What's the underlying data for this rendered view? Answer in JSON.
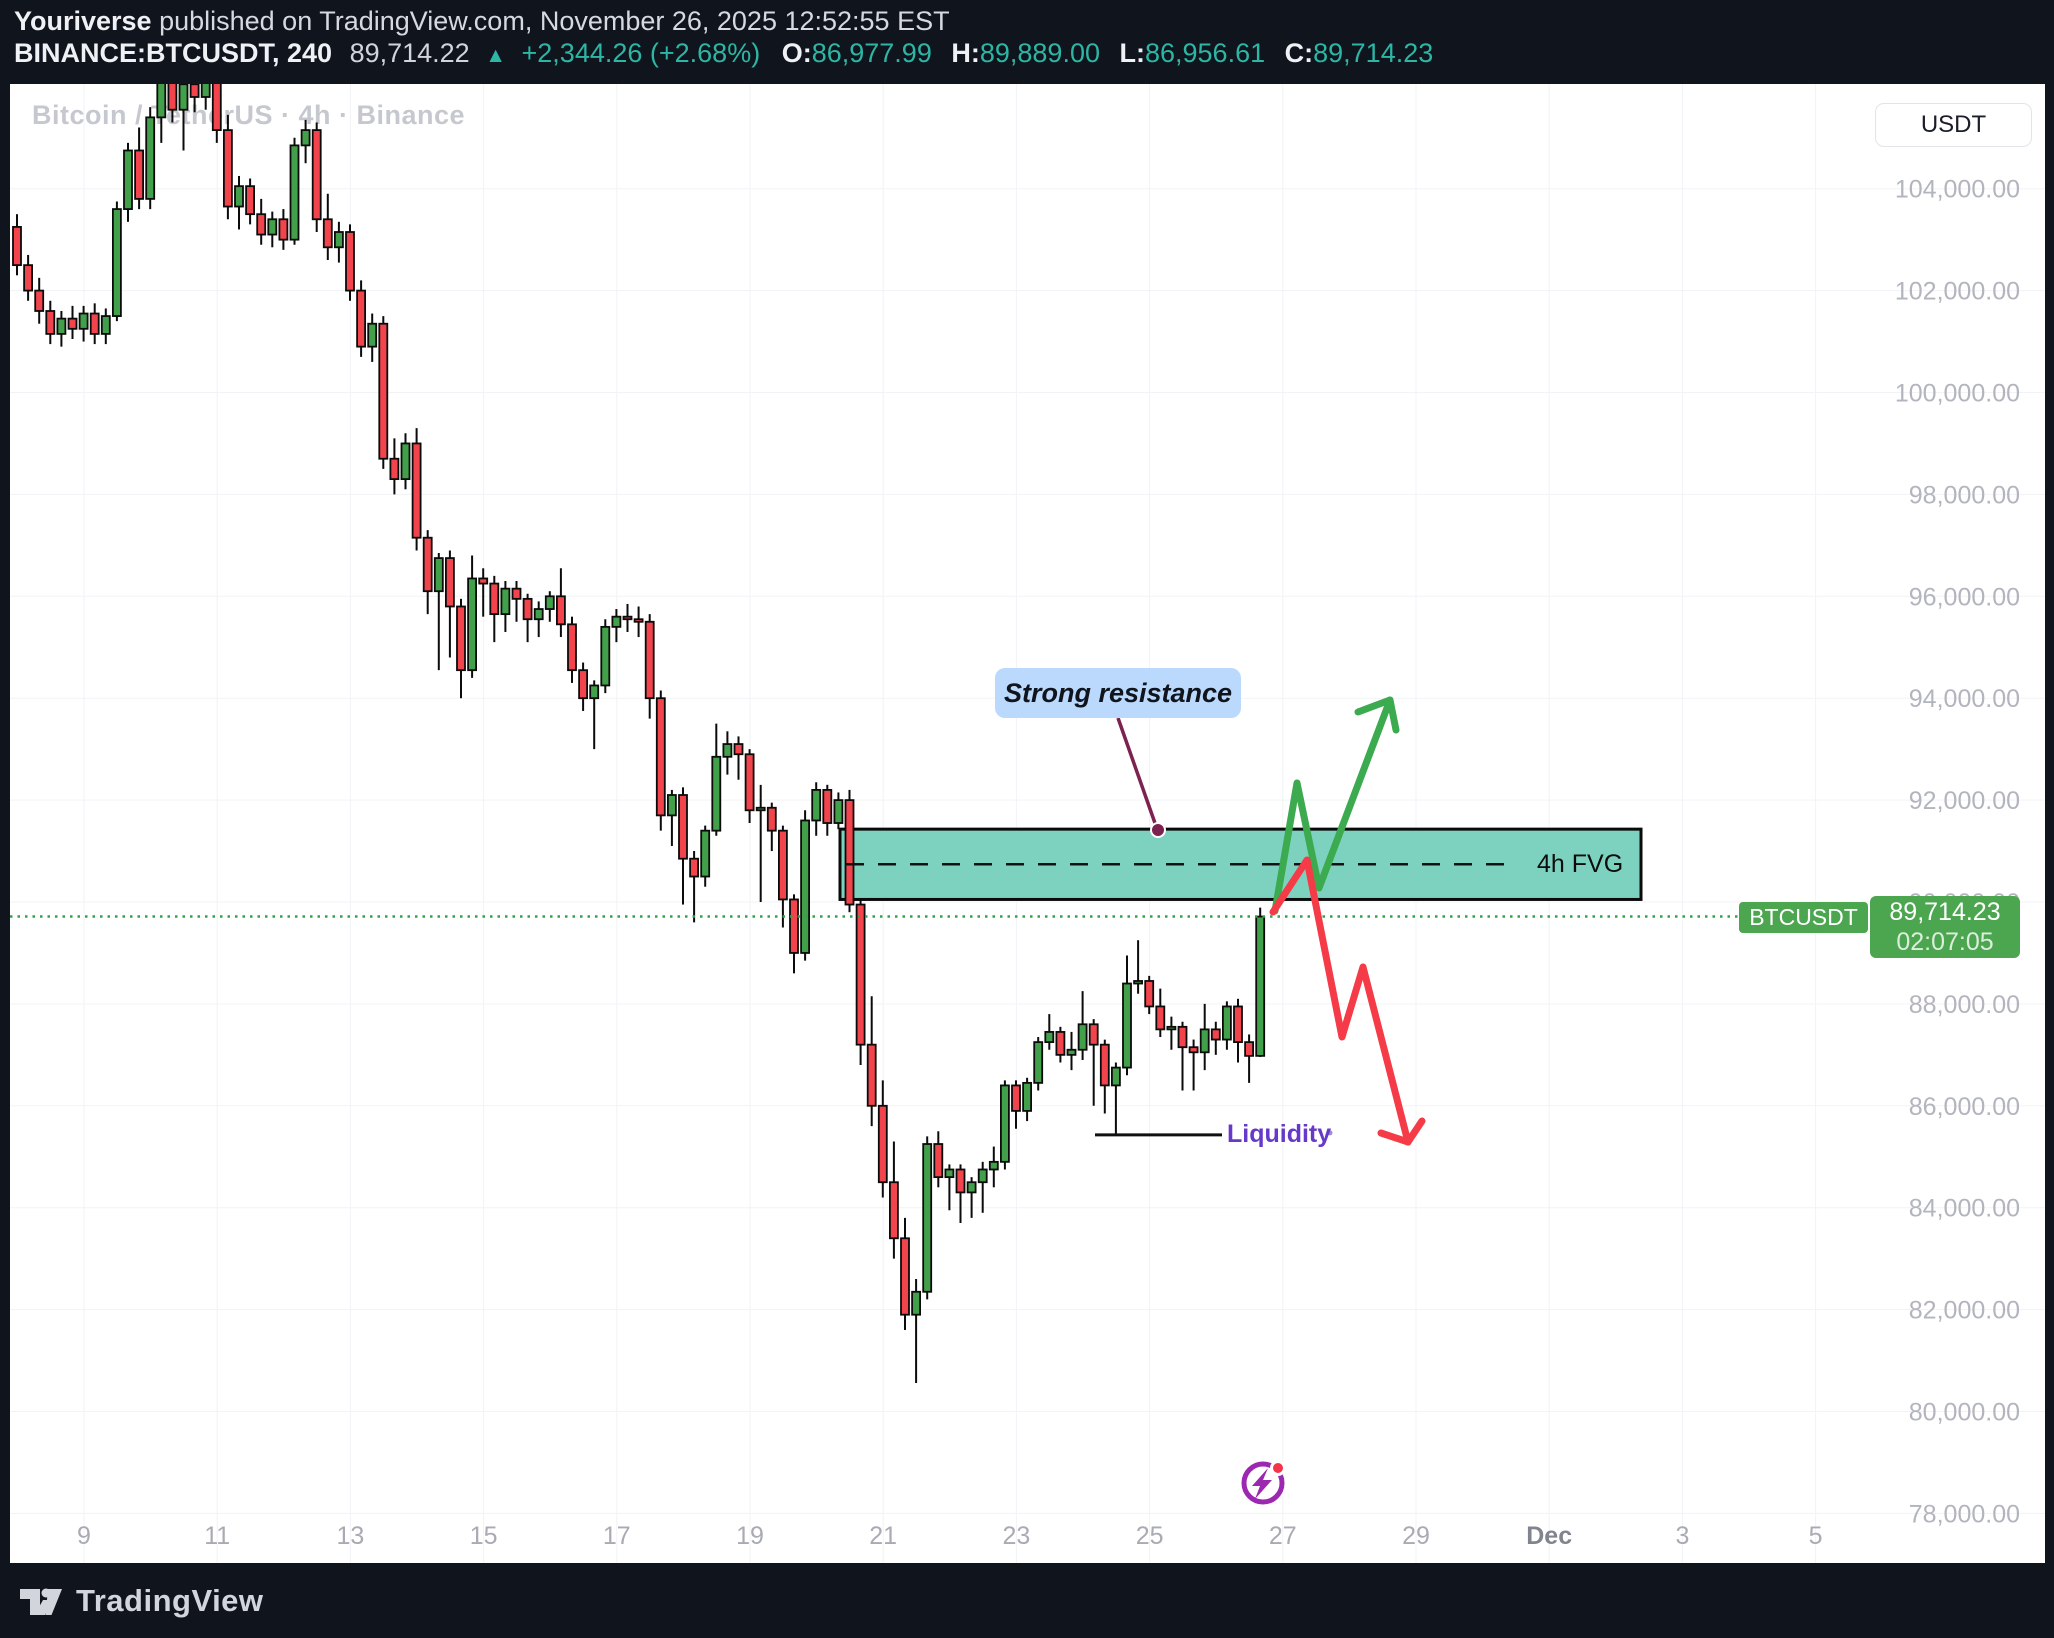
{
  "header": {
    "author": "Youriverse",
    "published": " published on TradingView.com, November 26, 2025 12:52:55 EST",
    "symbol": "BINANCE:BTCUSDT, 240",
    "last": "89,714.22",
    "up_arrow": "▲",
    "change": "+2,344.26 (+2.68%)",
    "o_label": "O:",
    "o_value": "86,977.99",
    "h_label": "H:",
    "h_value": "89,889.00",
    "l_label": "L:",
    "l_value": "86,956.61",
    "c_label": "C:",
    "c_value": "89,714.23"
  },
  "chart": {
    "watermark": "Bitcoin / TetherUS · 4h · Binance",
    "currency_button": "USDT",
    "annotations": {
      "resistance": "Strong resistance",
      "fvg": "4h FVG",
      "liquidity": "Liquidity"
    },
    "price_badge": {
      "symbol": "BTCUSDT",
      "price": "89,714.23",
      "countdown": "02:07:05"
    }
  },
  "footer": {
    "brand": "TradingView"
  },
  "colors": {
    "bg_dark": "#0f141d",
    "pane_bg": "#ffffff",
    "up_body": "#42a04a",
    "down_body": "#f1444c",
    "wick": "#0b0b0b",
    "grid": "#f1f3f6",
    "fvg_fill": "#7dd2bf",
    "fvg_border": "#0a0a0a",
    "price_line_green": "#31a449",
    "liquidity_line": "#101010",
    "callout_maroon": "#7d2150",
    "purple_text": "#6639c8",
    "arrow_up": "#3caa4e",
    "arrow_down": "#f43b47",
    "icon_purple": "#9c27b0",
    "icon_red_dot": "#f5334a",
    "badge_green": "#4ca650",
    "accent_teal": "#2db6a5"
  },
  "chart_data": {
    "type": "candlestick",
    "symbol": "BINANCE:BTCUSDT",
    "interval": "240",
    "interval_label": "4h",
    "start": "2025-11-08 00:00",
    "units": "thousands of USDT per candle [open, high, low, close]",
    "last_price": 89714.23,
    "price_line": 89714.23,
    "fvg_box": {
      "top": 91430,
      "bottom": 90050,
      "label": "4h FVG"
    },
    "liquidity_level": 85430,
    "y_axis": {
      "min": 78000,
      "max": 104000,
      "step": 2000
    },
    "y_ticks": [
      {
        "value": 104000,
        "label": "104,000.00"
      },
      {
        "value": 102000,
        "label": "102,000.00"
      },
      {
        "value": 100000,
        "label": "100,000.00"
      },
      {
        "value": 98000,
        "label": "98,000.00"
      },
      {
        "value": 96000,
        "label": "96,000.00"
      },
      {
        "value": 94000,
        "label": "94,000.00"
      },
      {
        "value": 92000,
        "label": "92,000.00"
      },
      {
        "value": 90000,
        "label": "90,000.00"
      },
      {
        "value": 88000,
        "label": "88,000.00"
      },
      {
        "value": 86000,
        "label": "86,000.00"
      },
      {
        "value": 84000,
        "label": "84,000.00"
      },
      {
        "value": 82000,
        "label": "82,000.00"
      },
      {
        "value": 80000,
        "label": "80,000.00"
      },
      {
        "value": 78000,
        "label": "78,000.00"
      }
    ],
    "x_ticks": [
      {
        "label": "9",
        "day": 9
      },
      {
        "label": "11",
        "day": 11
      },
      {
        "label": "13",
        "day": 13
      },
      {
        "label": "15",
        "day": 15
      },
      {
        "label": "17",
        "day": 17
      },
      {
        "label": "19",
        "day": 19
      },
      {
        "label": "21",
        "day": 21
      },
      {
        "label": "23",
        "day": 23
      },
      {
        "label": "25",
        "day": 25
      },
      {
        "label": "27",
        "day": 27
      },
      {
        "label": "29",
        "day": 29
      },
      {
        "label": "Dec",
        "day": 31,
        "month": true
      },
      {
        "label": "3",
        "day": 33
      },
      {
        "label": "5",
        "day": 35
      }
    ],
    "candles": [
      [
        103.25,
        103.5,
        102.3,
        102.5
      ],
      [
        102.5,
        102.7,
        101.8,
        102.0
      ],
      [
        102.0,
        102.25,
        101.35,
        101.6
      ],
      [
        101.6,
        101.8,
        100.95,
        101.15
      ],
      [
        101.15,
        101.6,
        100.9,
        101.45
      ],
      [
        101.45,
        101.7,
        101.05,
        101.25
      ],
      [
        101.25,
        101.7,
        101.0,
        101.55
      ],
      [
        101.55,
        101.75,
        100.95,
        101.15
      ],
      [
        101.15,
        101.65,
        100.95,
        101.5
      ],
      [
        101.5,
        103.75,
        101.4,
        103.6
      ],
      [
        103.6,
        104.9,
        103.35,
        104.75
      ],
      [
        104.75,
        105.2,
        103.6,
        103.8
      ],
      [
        103.8,
        105.6,
        103.6,
        105.4
      ],
      [
        105.4,
        106.45,
        104.9,
        106.1
      ],
      [
        106.1,
        106.5,
        105.3,
        105.55
      ],
      [
        105.55,
        106.3,
        104.75,
        106.05
      ],
      [
        106.05,
        106.4,
        105.5,
        105.8
      ],
      [
        105.8,
        106.35,
        105.55,
        106.2
      ],
      [
        106.2,
        106.4,
        104.9,
        105.15
      ],
      [
        105.15,
        105.45,
        103.4,
        103.65
      ],
      [
        103.65,
        104.25,
        103.2,
        104.05
      ],
      [
        104.05,
        104.2,
        103.3,
        103.5
      ],
      [
        103.5,
        103.8,
        102.9,
        103.1
      ],
      [
        103.1,
        103.55,
        102.85,
        103.4
      ],
      [
        103.4,
        103.6,
        102.8,
        103.0
      ],
      [
        103.0,
        105.0,
        102.9,
        104.85
      ],
      [
        104.85,
        105.35,
        104.5,
        105.15
      ],
      [
        105.15,
        105.3,
        103.15,
        103.4
      ],
      [
        103.4,
        103.9,
        102.6,
        102.85
      ],
      [
        102.85,
        103.35,
        102.55,
        103.15
      ],
      [
        103.15,
        103.3,
        101.8,
        102.0
      ],
      [
        102.0,
        102.2,
        100.7,
        100.9
      ],
      [
        100.9,
        101.55,
        100.6,
        101.35
      ],
      [
        101.35,
        101.5,
        98.5,
        98.7
      ],
      [
        98.7,
        99.1,
        98.0,
        98.3
      ],
      [
        98.3,
        99.2,
        98.1,
        99.0
      ],
      [
        99.0,
        99.3,
        96.9,
        97.15
      ],
      [
        97.15,
        97.3,
        95.65,
        96.1
      ],
      [
        96.1,
        96.85,
        94.55,
        96.75
      ],
      [
        96.75,
        96.9,
        94.8,
        95.8
      ],
      [
        95.8,
        95.95,
        94.0,
        94.55
      ],
      [
        94.55,
        96.8,
        94.4,
        96.35
      ],
      [
        96.35,
        96.55,
        95.6,
        96.25
      ],
      [
        96.25,
        96.4,
        95.1,
        95.65
      ],
      [
        95.65,
        96.3,
        95.3,
        96.15
      ],
      [
        96.15,
        96.3,
        95.5,
        95.95
      ],
      [
        95.95,
        96.05,
        95.1,
        95.55
      ],
      [
        95.55,
        95.9,
        95.2,
        95.75
      ],
      [
        95.75,
        96.1,
        95.5,
        96.0
      ],
      [
        96.0,
        96.55,
        95.2,
        95.45
      ],
      [
        95.45,
        95.6,
        94.3,
        94.55
      ],
      [
        94.55,
        94.7,
        93.75,
        94.0
      ],
      [
        94.0,
        94.35,
        93.0,
        94.25
      ],
      [
        94.25,
        95.55,
        94.1,
        95.4
      ],
      [
        95.4,
        95.75,
        95.1,
        95.6
      ],
      [
        95.6,
        95.85,
        95.3,
        95.55
      ],
      [
        95.55,
        95.8,
        95.2,
        95.5
      ],
      [
        95.5,
        95.65,
        93.6,
        94.0
      ],
      [
        94.0,
        94.15,
        91.4,
        91.7
      ],
      [
        91.7,
        92.2,
        91.1,
        92.1
      ],
      [
        92.1,
        92.25,
        89.95,
        90.85
      ],
      [
        90.85,
        91.0,
        89.6,
        90.5
      ],
      [
        90.5,
        91.5,
        90.3,
        91.4
      ],
      [
        91.4,
        93.5,
        91.3,
        92.85
      ],
      [
        92.85,
        93.35,
        92.5,
        93.1
      ],
      [
        93.1,
        93.25,
        92.4,
        92.9
      ],
      [
        92.9,
        93.0,
        91.55,
        91.8
      ],
      [
        91.8,
        92.3,
        90.0,
        91.85
      ],
      [
        91.85,
        91.95,
        91.0,
        91.4
      ],
      [
        91.4,
        91.5,
        89.5,
        90.05
      ],
      [
        90.05,
        90.15,
        88.6,
        89.0
      ],
      [
        89.0,
        91.8,
        88.85,
        91.6
      ],
      [
        91.6,
        92.35,
        91.3,
        92.2
      ],
      [
        92.2,
        92.3,
        91.3,
        91.55
      ],
      [
        91.55,
        92.15,
        91.43,
        92.0
      ],
      [
        92.0,
        92.2,
        89.8,
        89.95
      ],
      [
        89.95,
        90.05,
        86.8,
        87.2
      ],
      [
        87.2,
        88.15,
        85.6,
        86.0
      ],
      [
        86.0,
        86.5,
        84.2,
        84.5
      ],
      [
        84.5,
        85.3,
        83.0,
        83.4
      ],
      [
        83.4,
        83.8,
        81.6,
        81.9
      ],
      [
        81.9,
        82.6,
        80.56,
        82.35
      ],
      [
        82.35,
        85.4,
        82.2,
        85.25
      ],
      [
        85.25,
        85.5,
        84.4,
        84.6
      ],
      [
        84.6,
        84.85,
        83.95,
        84.75
      ],
      [
        84.75,
        84.85,
        83.7,
        84.3
      ],
      [
        84.3,
        84.6,
        83.8,
        84.5
      ],
      [
        84.5,
        84.9,
        83.9,
        84.75
      ],
      [
        84.75,
        85.2,
        84.4,
        84.9
      ],
      [
        84.9,
        86.5,
        84.75,
        86.4
      ],
      [
        86.4,
        86.5,
        85.55,
        85.9
      ],
      [
        85.9,
        86.55,
        85.7,
        86.45
      ],
      [
        86.45,
        87.35,
        86.3,
        87.25
      ],
      [
        87.25,
        87.8,
        87.1,
        87.45
      ],
      [
        87.45,
        87.55,
        86.85,
        87.0
      ],
      [
        87.0,
        87.45,
        86.7,
        87.1
      ],
      [
        87.1,
        88.25,
        86.9,
        87.6
      ],
      [
        87.6,
        87.7,
        86.0,
        87.2
      ],
      [
        87.2,
        87.3,
        85.85,
        86.4
      ],
      [
        86.4,
        86.85,
        85.43,
        86.75
      ],
      [
        86.75,
        88.95,
        86.6,
        88.4
      ],
      [
        88.4,
        89.25,
        88.2,
        88.45
      ],
      [
        88.45,
        88.55,
        87.8,
        87.95
      ],
      [
        87.95,
        88.3,
        87.35,
        87.5
      ],
      [
        87.5,
        87.75,
        87.1,
        87.55
      ],
      [
        87.55,
        87.65,
        86.3,
        87.15
      ],
      [
        87.15,
        87.3,
        86.3,
        87.05
      ],
      [
        87.05,
        88.0,
        86.7,
        87.5
      ],
      [
        87.5,
        87.65,
        87.0,
        87.3
      ],
      [
        87.3,
        88.05,
        87.1,
        87.95
      ],
      [
        87.95,
        88.1,
        86.85,
        87.25
      ],
      [
        87.25,
        87.4,
        86.45,
        86.98
      ],
      [
        86.98,
        89.889,
        86.957,
        89.714
      ]
    ],
    "projection_up_arrow": true,
    "projection_down_arrow": true,
    "legend_position": "none",
    "grid": true
  }
}
